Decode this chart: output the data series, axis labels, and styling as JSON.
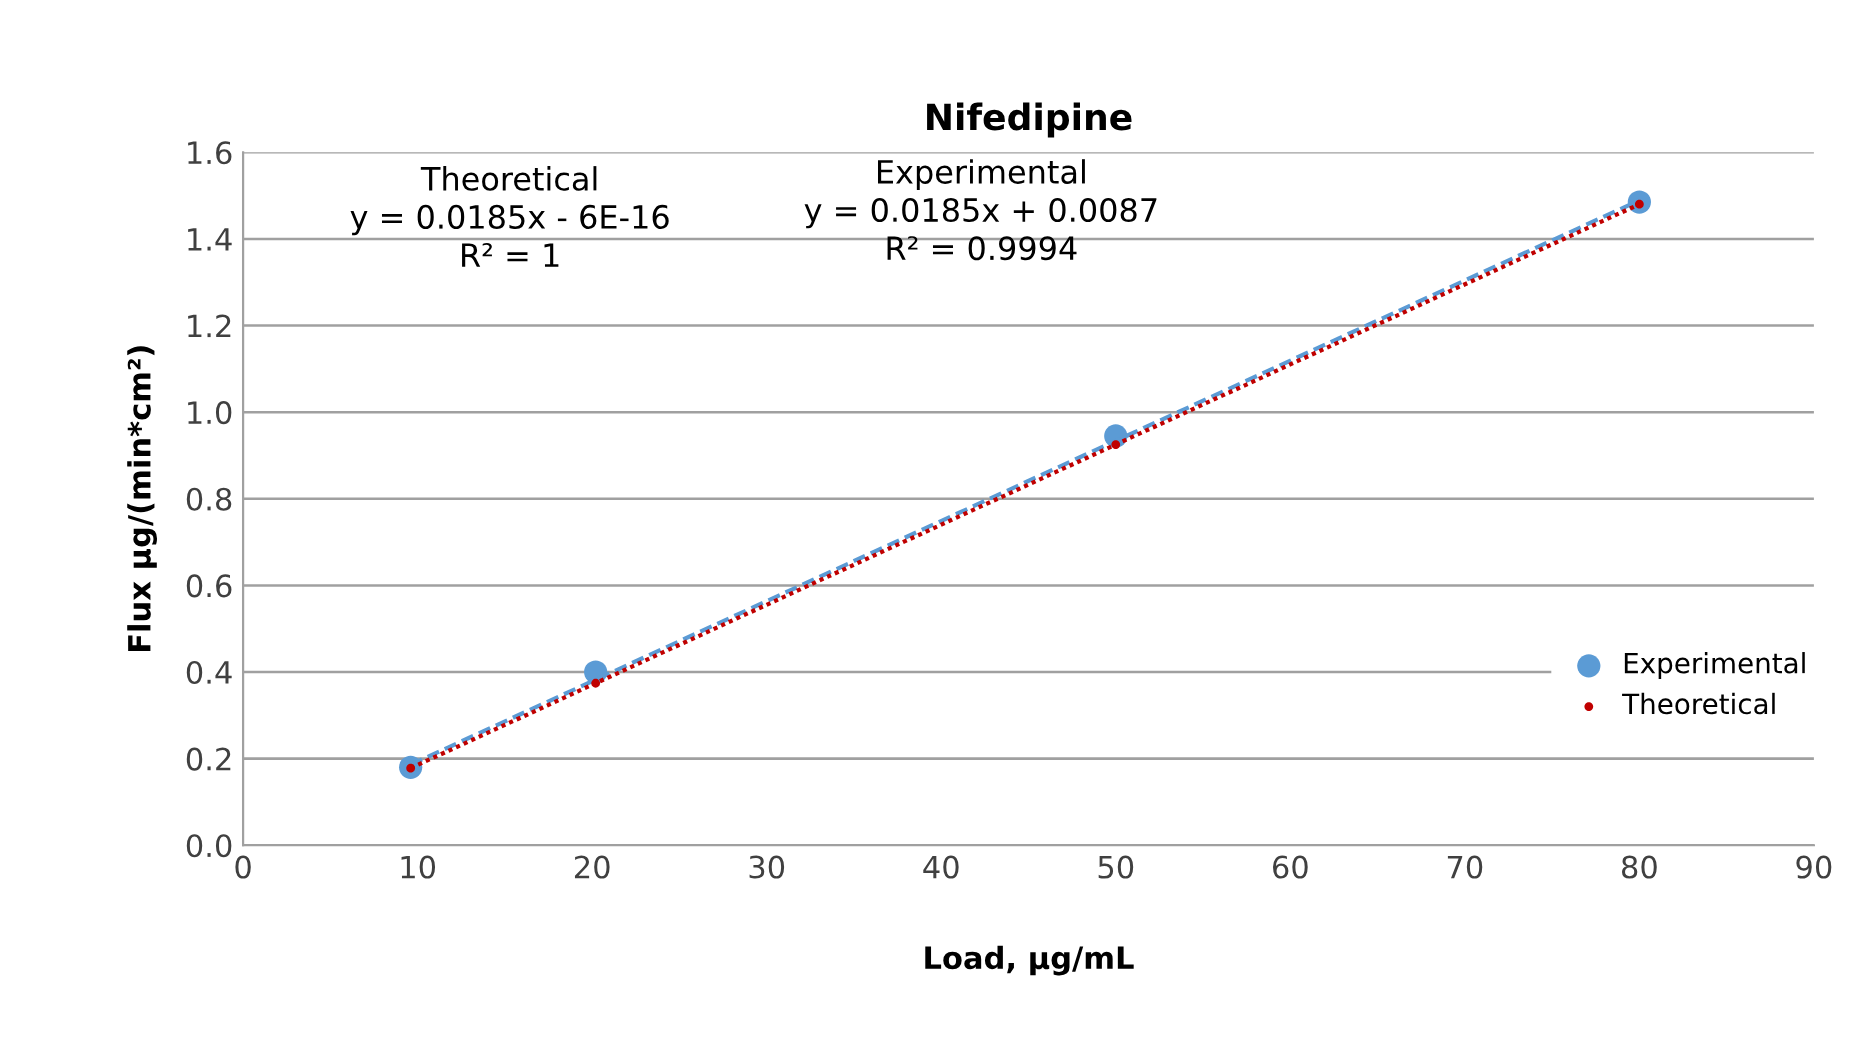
{
  "chart_data": {
    "type": "scatter",
    "title": "Nifedipine",
    "xlabel": "Load, µg/mL",
    "ylabel": "Flux µg/(min*cm²)",
    "xlim": [
      0,
      90
    ],
    "xticks": [
      0,
      10,
      20,
      30,
      40,
      50,
      60,
      70,
      80,
      90
    ],
    "ylim": [
      0,
      1.6
    ],
    "yticks": [
      {
        "value": 0,
        "label": "0.0"
      },
      0.2,
      0.4,
      0.6,
      0.8,
      {
        "value": 1,
        "label": "1.0"
      },
      1.2,
      1.4,
      1.6
    ],
    "grid": "y",
    "legend": "right",
    "annotations": [
      "Theoretical\ny = 0.0185x - 6E-16\nR² = 1",
      "Experimental\ny = 0.0185x + 0.0087\nR² = 0.9994"
    ],
    "series": [
      {
        "name": "Experimental",
        "marker": "circle",
        "color": "#5b9bd5",
        "x": [
          9.6,
          20.2,
          50,
          80
        ],
        "values": [
          0.18,
          0.4,
          0.945,
          1.485
        ]
      },
      {
        "name": "Theoretical",
        "marker": "circle",
        "color": "#c00000",
        "x": [
          9.6,
          20.2,
          50,
          80
        ],
        "values": [
          0.178,
          0.374,
          0.925,
          1.48
        ]
      },
      {
        "type": "line",
        "line_style": "dashed",
        "color": "#5b9bd5",
        "x": [
          9.6,
          80
        ],
        "values": [
          0.186,
          1.489
        ]
      },
      {
        "type": "line",
        "line_style": "dotted",
        "color": "#c00000",
        "x": [
          9.6,
          80
        ],
        "values": [
          0.178,
          1.48
        ]
      }
    ]
  }
}
